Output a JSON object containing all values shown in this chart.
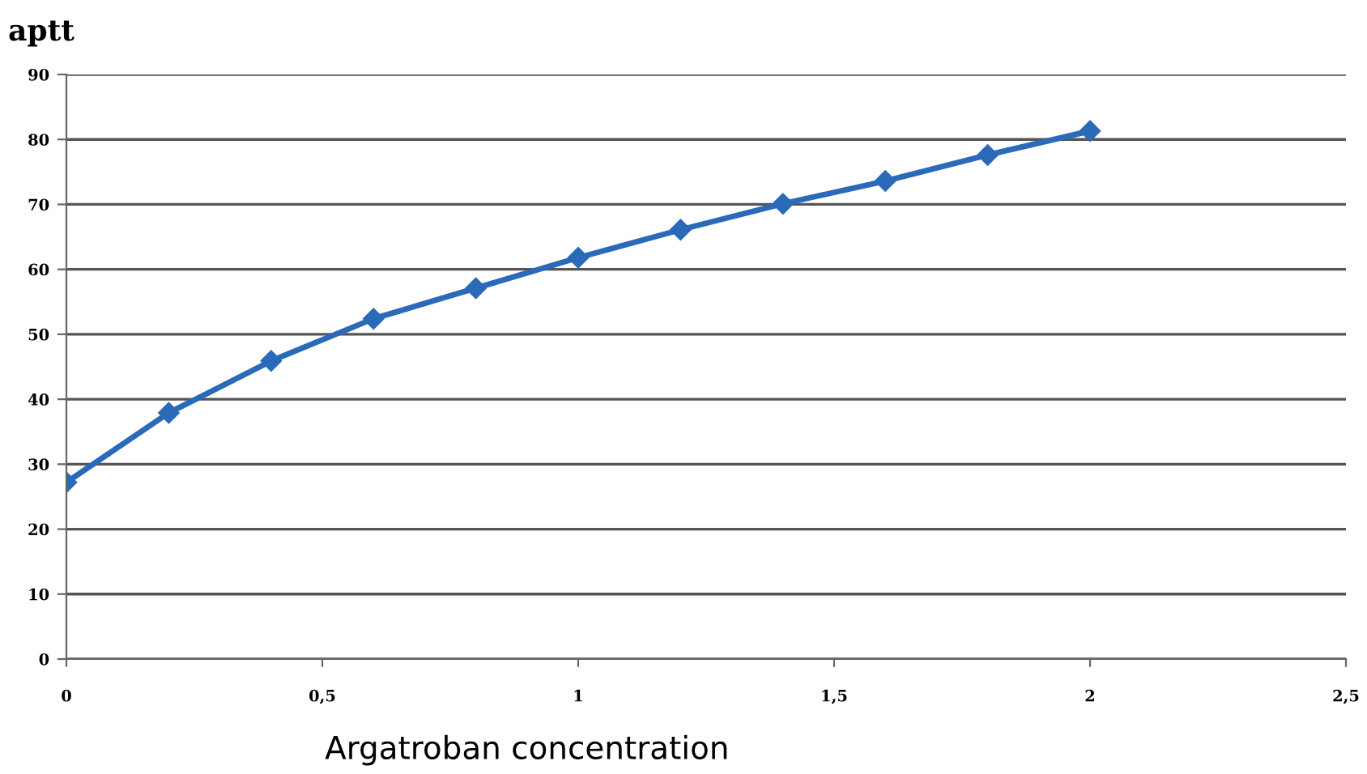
{
  "chart_data": {
    "type": "line",
    "ylabel": "aptt",
    "xlabel": "Argatroban concentration",
    "x": [
      0,
      0.2,
      0.4,
      0.6,
      0.8,
      1.0,
      1.2,
      1.4,
      1.6,
      1.8,
      2.0
    ],
    "series": [
      {
        "color": "#2a6ab8",
        "values": [
          27.2,
          37.9,
          45.9,
          52.4,
          57.1,
          61.8,
          66.1,
          70.1,
          73.6,
          77.6,
          81.3
        ]
      }
    ],
    "xlim": [
      0,
      2.5
    ],
    "ylim": [
      0,
      90
    ],
    "xticks": [
      0,
      {
        "value": 0.5,
        "label": "0,5"
      },
      1,
      {
        "value": 1.5,
        "label": "1,5"
      },
      2,
      {
        "value": 2.5,
        "label": "2,5"
      }
    ],
    "yticks": [
      0,
      10,
      20,
      30,
      40,
      50,
      60,
      70,
      80,
      90
    ],
    "grid": "y",
    "marker": "diamond",
    "line_style": "solid"
  }
}
